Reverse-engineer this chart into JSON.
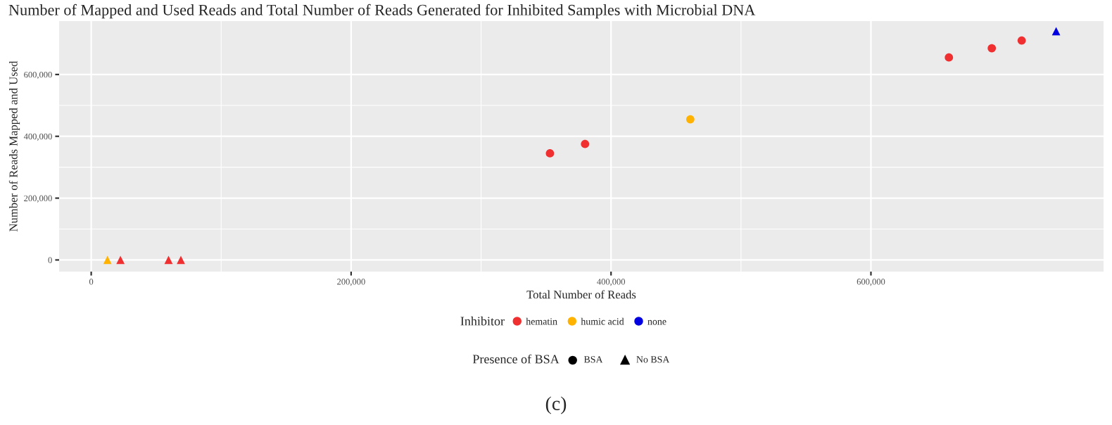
{
  "chart_data": {
    "type": "scatter",
    "title": "Number of Mapped and Used Reads and Total Number of Reads Generated for Inhibited Samples with Microbial DNA",
    "xlabel": "Total Number of Reads",
    "ylabel": "Number of Reads Mapped and Used",
    "legend_title": "Inhibitor",
    "series": [
      {
        "name": "hematin",
        "color": "#f03030",
        "marker": "circle",
        "x": [
          353000,
          380000,
          660000,
          693000,
          716000
        ],
        "values": [
          345000,
          375000,
          655000,
          685000,
          710000
        ]
      },
      {
        "color": "#f03030",
        "marker": "triangle",
        "x": [
          22500,
          59500,
          69000
        ],
        "values": [
          0,
          0,
          0
        ]
      },
      {
        "name": "humic acid",
        "color": "#ffb300",
        "marker": "circle",
        "x": [
          461000
        ],
        "values": [
          455000
        ]
      },
      {
        "color": "#ffb300",
        "marker": "triangle",
        "x": [
          12500
        ],
        "values": [
          0
        ]
      },
      {
        "name": "none",
        "color": "#0000e0",
        "marker": "triangle",
        "x": [
          742500
        ],
        "values": [
          740000
        ]
      }
    ],
    "legend": "bottom",
    "xlim": [
      -24700,
      779000
    ],
    "ylim": [
      -37700,
      772700
    ],
    "xticks": [
      {
        "value": 0,
        "label": "0"
      },
      {
        "value": 200000,
        "label": "200,000"
      },
      {
        "value": 400000,
        "label": "400,000"
      },
      {
        "value": 600000,
        "label": "600,000"
      }
    ],
    "yticks": [
      {
        "value": 0,
        "label": "0"
      },
      {
        "value": 200000,
        "label": "200,000"
      },
      {
        "value": 400000,
        "label": "400,000"
      },
      {
        "value": 600000,
        "label": "600,000"
      }
    ],
    "grid": true,
    "annotations": [
      "Presence of BSA",
      "BSA",
      "No BSA",
      "(c)"
    ]
  }
}
